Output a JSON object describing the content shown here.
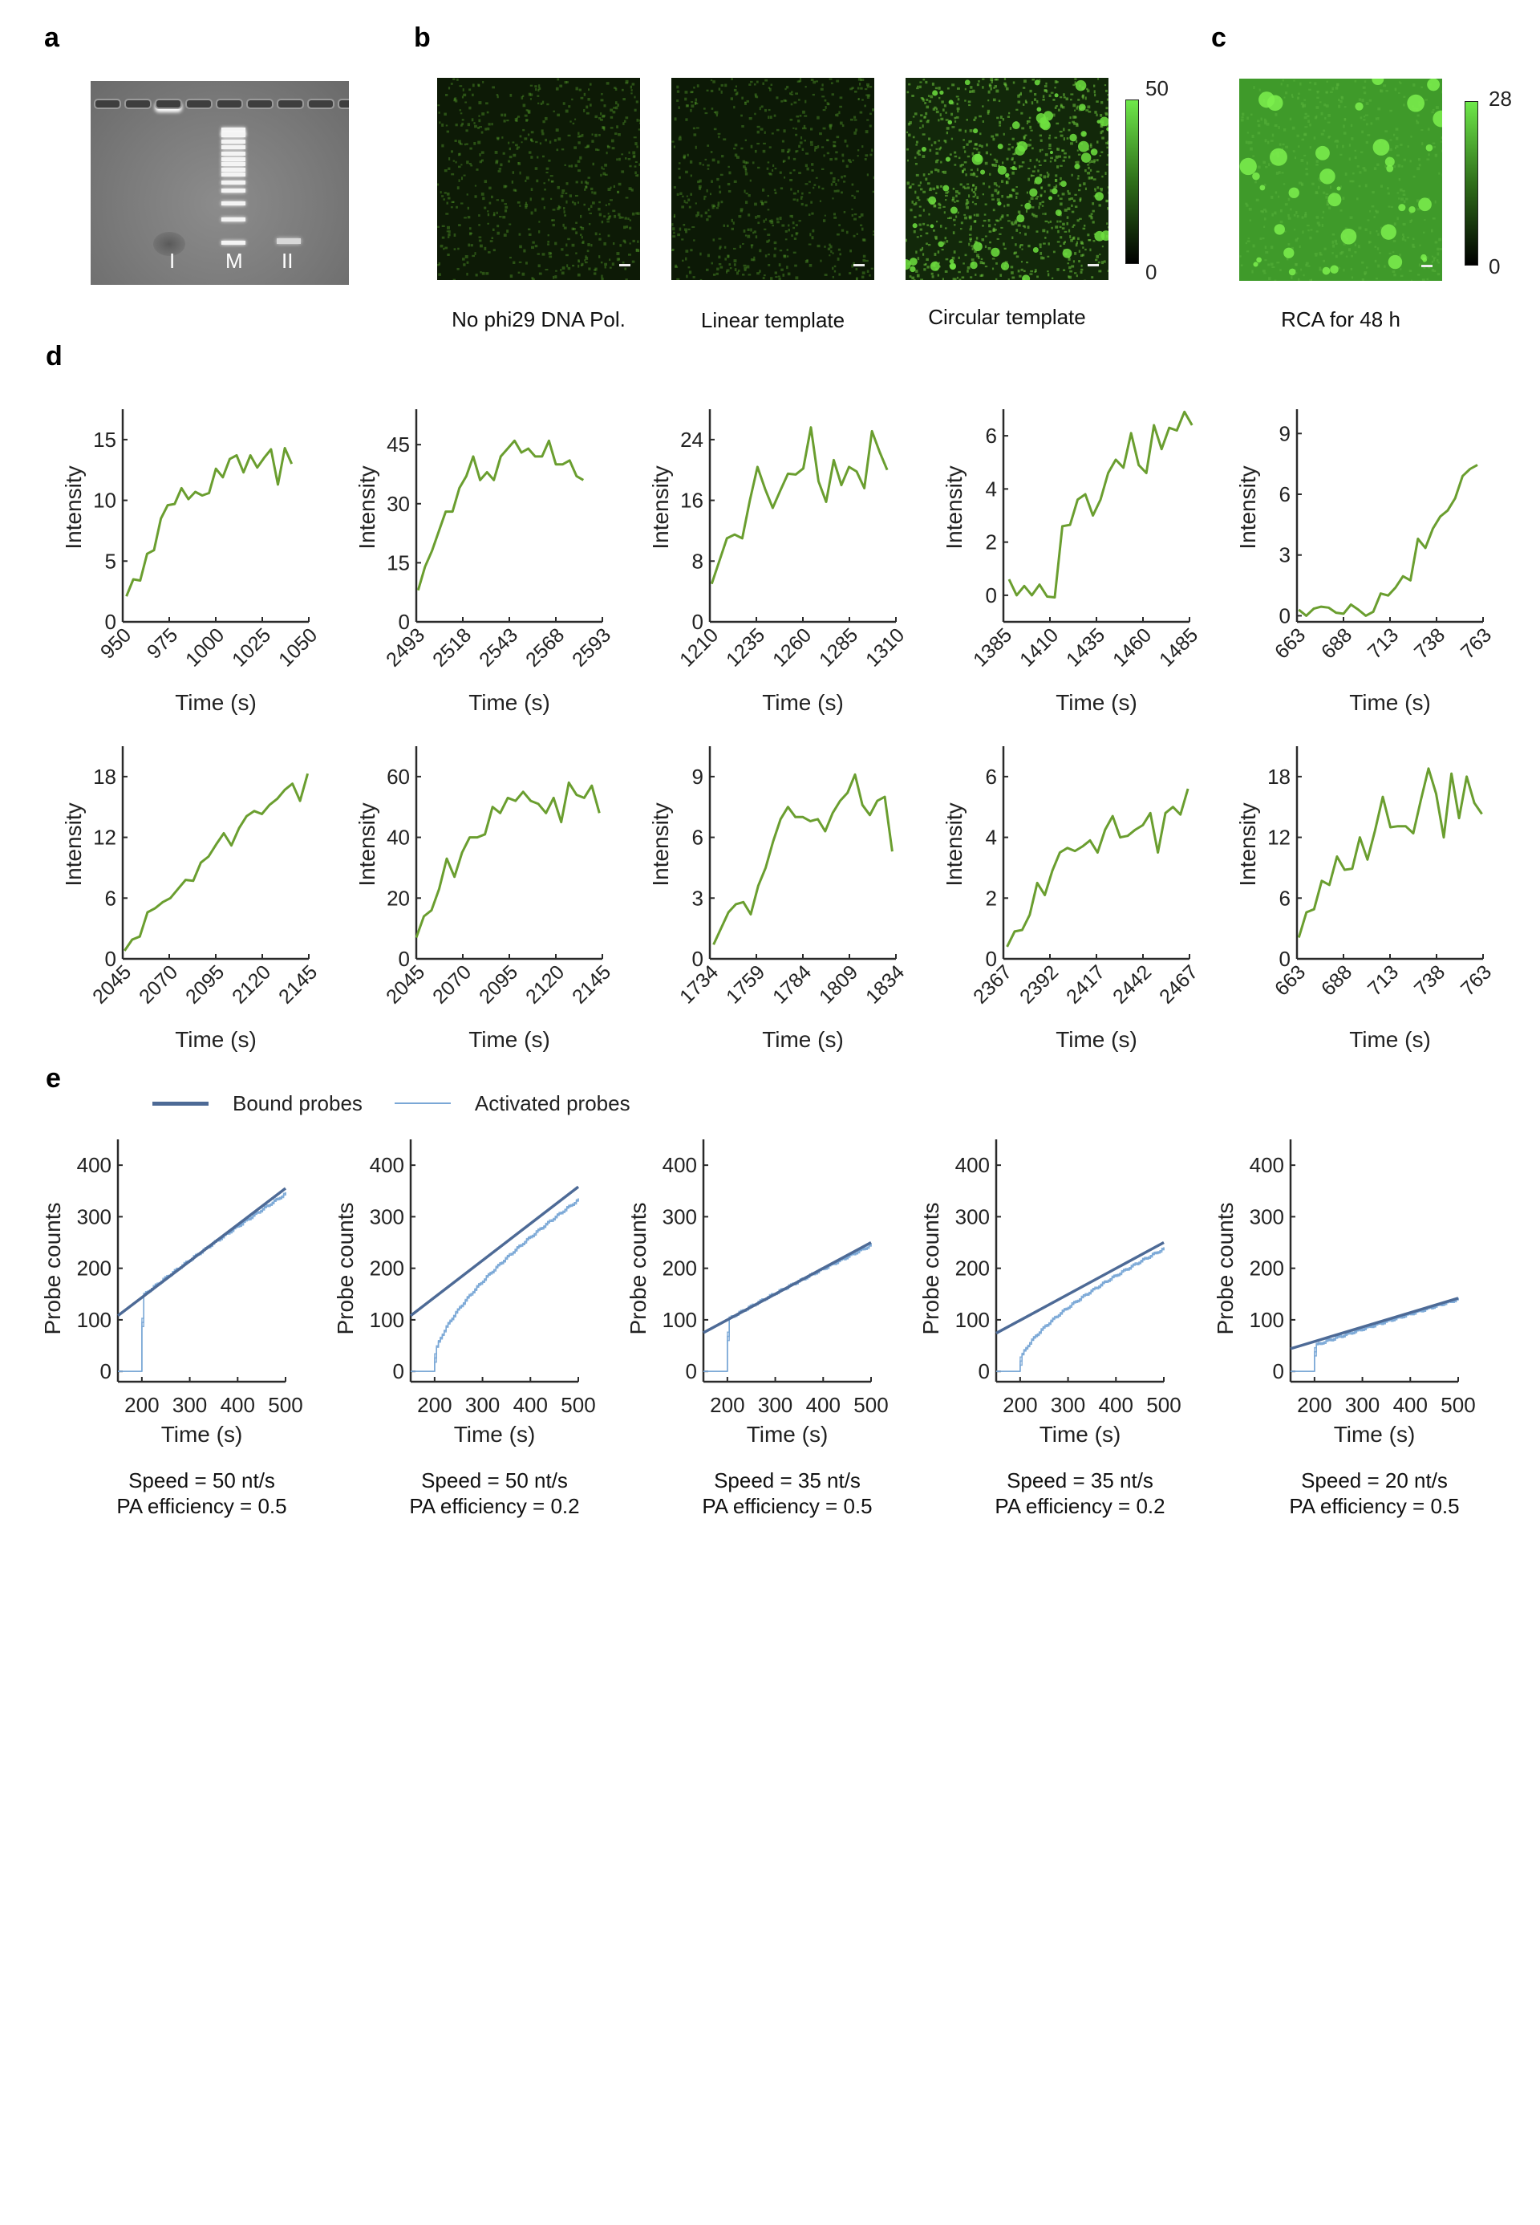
{
  "figure": {
    "panel_letters": [
      "a",
      "b",
      "c",
      "d",
      "e"
    ]
  },
  "panel_a": {
    "lane_labels": [
      "I",
      "M",
      "II"
    ],
    "description": "agarose gel image"
  },
  "panel_b": {
    "images": [
      {
        "caption": "No phi29 DNA Pol.",
        "brightness": "dark"
      },
      {
        "caption": "Linear template",
        "brightness": "dark"
      },
      {
        "caption": "Circular template",
        "brightness": "bright-spots"
      }
    ],
    "colorbar": {
      "max_label": "50",
      "min_label": "0"
    }
  },
  "panel_c": {
    "caption": "RCA for 48 h",
    "colorbar": {
      "max_label": "28",
      "min_label": "0"
    }
  },
  "colors": {
    "trace_green": "#6a9e2f",
    "bound_probes": "#4d6a96",
    "activated_probes": "#7aa7d6",
    "axis": "#2a2a2a"
  },
  "chart_data": [
    {
      "panel": "d",
      "type": "line",
      "xlabel": "Time (s)",
      "ylabel": "Intensity",
      "xlim": [
        950,
        1050
      ],
      "ylim": [
        0,
        17.5
      ],
      "xticks": [
        "950",
        "975",
        "1000",
        "1025",
        "1050"
      ],
      "yticks": [
        "0",
        "5",
        "10",
        "15"
      ],
      "ytick_values": [
        0,
        5,
        10,
        15
      ],
      "x_start": 952,
      "x_step": 3.7,
      "values": [
        2.1,
        3.5,
        3.4,
        5.6,
        5.9,
        8.5,
        9.6,
        9.7,
        11.0,
        10.1,
        10.7,
        10.4,
        10.6,
        12.6,
        11.9,
        13.4,
        13.7,
        12.3,
        13.7,
        12.7,
        13.5,
        14.2,
        11.3,
        14.3,
        13.0
      ]
    },
    {
      "panel": "d",
      "type": "line",
      "xlabel": "Time (s)",
      "ylabel": "Intensity",
      "xlim": [
        2493,
        2593
      ],
      "ylim": [
        0,
        54
      ],
      "xticks": [
        "2493",
        "2518",
        "2543",
        "2568",
        "2593"
      ],
      "yticks": [
        "0",
        "15",
        "30",
        "45"
      ],
      "ytick_values": [
        0,
        15,
        30,
        45
      ],
      "x_start": 2494,
      "x_step": 3.7,
      "values": [
        8,
        14,
        18,
        23,
        28,
        28,
        34,
        37,
        42,
        36,
        38,
        36,
        42,
        44,
        46,
        43,
        44,
        42,
        42,
        46,
        40,
        40,
        41,
        37,
        36
      ]
    },
    {
      "panel": "d",
      "type": "line",
      "xlabel": "Time (s)",
      "ylabel": "Intensity",
      "xlim": [
        1210,
        1310
      ],
      "ylim": [
        0,
        28
      ],
      "xticks": [
        "1210",
        "1235",
        "1260",
        "1285",
        "1310"
      ],
      "yticks": [
        "0",
        "8",
        "16",
        "24"
      ],
      "ytick_values": [
        0,
        8,
        16,
        24
      ],
      "x_start": 1211,
      "x_step": 4.1,
      "values": [
        5,
        8,
        11,
        11.5,
        11,
        16,
        20.4,
        17.5,
        15,
        17.3,
        19.5,
        19.4,
        20.2,
        25.6,
        18.5,
        15.8,
        21.3,
        18,
        20.4,
        19.8,
        17.6,
        25.1,
        22.4,
        20
      ]
    },
    {
      "panel": "d",
      "type": "line",
      "xlabel": "Time (s)",
      "ylabel": "Intensity",
      "xlim": [
        1385,
        1485
      ],
      "ylim": [
        -1,
        7
      ],
      "xticks": [
        "1385",
        "1410",
        "1435",
        "1460",
        "1485"
      ],
      "yticks": [
        "0",
        "2",
        "4",
        "6"
      ],
      "ytick_values": [
        0,
        2,
        4,
        6
      ],
      "x_start": 1388,
      "x_step": 4.1,
      "values": [
        0.6,
        0.0,
        0.35,
        0.0,
        0.4,
        -0.05,
        -0.08,
        2.6,
        2.65,
        3.6,
        3.8,
        3.0,
        3.6,
        4.6,
        5.1,
        4.8,
        6.1,
        4.9,
        4.6,
        6.4,
        5.5,
        6.3,
        6.2,
        6.9,
        6.4
      ]
    },
    {
      "panel": "d",
      "type": "line",
      "xlabel": "Time (s)",
      "ylabel": "Intensity",
      "xlim": [
        663,
        763
      ],
      "ylim": [
        -0.3,
        10.2
      ],
      "xticks": [
        "663",
        "688",
        "713",
        "738",
        "763"
      ],
      "yticks": [
        "0",
        "3",
        "6",
        "9"
      ],
      "ytick_values": [
        0,
        3,
        6,
        9
      ],
      "x_start": 664,
      "x_step": 4.0,
      "values": [
        0.3,
        0.0,
        0.35,
        0.45,
        0.4,
        0.15,
        0.1,
        0.55,
        0.3,
        0.0,
        0.2,
        1.1,
        1.0,
        1.4,
        1.95,
        1.75,
        3.8,
        3.35,
        4.3,
        4.9,
        5.2,
        5.8,
        6.9,
        7.25,
        7.45
      ]
    },
    {
      "panel": "d",
      "type": "line",
      "xlabel": "Time (s)",
      "ylabel": "Intensity",
      "xlim": [
        2045,
        2145
      ],
      "ylim": [
        0,
        21
      ],
      "xticks": [
        "2045",
        "2070",
        "2095",
        "2120",
        "2145"
      ],
      "yticks": [
        "0",
        "6",
        "12",
        "18"
      ],
      "ytick_values": [
        0,
        6,
        12,
        18
      ],
      "x_start": 2046,
      "x_step": 4.1,
      "values": [
        0.8,
        1.9,
        2.2,
        4.6,
        5.0,
        5.6,
        6.0,
        6.9,
        7.8,
        7.7,
        9.5,
        10.1,
        11.3,
        12.4,
        11.2,
        12.9,
        14.1,
        14.6,
        14.3,
        15.2,
        15.8,
        16.7,
        17.3,
        15.6,
        18.3
      ]
    },
    {
      "panel": "d",
      "type": "line",
      "xlabel": "Time (s)",
      "ylabel": "Intensity",
      "xlim": [
        2045,
        2145
      ],
      "ylim": [
        0,
        70
      ],
      "xticks": [
        "2045",
        "2070",
        "2095",
        "2120",
        "2145"
      ],
      "yticks": [
        "0",
        "20",
        "40",
        "60"
      ],
      "ytick_values": [
        0,
        20,
        40,
        60
      ],
      "x_start": 2045,
      "x_step": 4.1,
      "values": [
        7,
        14,
        16,
        23,
        33,
        27,
        35,
        40,
        40,
        41,
        50,
        48,
        53,
        52,
        55,
        52,
        51,
        48,
        53,
        45,
        58,
        54,
        53,
        57,
        48
      ]
    },
    {
      "panel": "d",
      "type": "line",
      "xlabel": "Time (s)",
      "ylabel": "Intensity",
      "xlim": [
        1734,
        1834
      ],
      "ylim": [
        0,
        10.5
      ],
      "xticks": [
        "1734",
        "1759",
        "1784",
        "1809",
        "1834"
      ],
      "yticks": [
        "0",
        "3",
        "6",
        "9"
      ],
      "ytick_values": [
        0,
        3,
        6,
        9
      ],
      "x_start": 1736,
      "x_step": 4.0,
      "values": [
        0.7,
        1.5,
        2.3,
        2.7,
        2.8,
        2.2,
        3.6,
        4.5,
        5.8,
        6.9,
        7.5,
        7.0,
        7.0,
        6.8,
        6.9,
        6.3,
        7.2,
        7.8,
        8.2,
        9.1,
        7.6,
        7.1,
        7.8,
        8.0,
        5.3
      ]
    },
    {
      "panel": "d",
      "type": "line",
      "xlabel": "Time (s)",
      "ylabel": "Intensity",
      "xlim": [
        2367,
        2467
      ],
      "ylim": [
        0,
        7
      ],
      "xticks": [
        "2367",
        "2392",
        "2417",
        "2442",
        "2467"
      ],
      "yticks": [
        "0",
        "2",
        "4",
        "6"
      ],
      "ytick_values": [
        0,
        2,
        4,
        6
      ],
      "x_start": 2369,
      "x_step": 4.05,
      "values": [
        0.4,
        0.9,
        0.95,
        1.45,
        2.5,
        2.1,
        2.9,
        3.5,
        3.65,
        3.55,
        3.7,
        3.9,
        3.5,
        4.25,
        4.7,
        4.0,
        4.05,
        4.25,
        4.4,
        4.8,
        3.5,
        4.8,
        5.0,
        4.75,
        5.6
      ]
    },
    {
      "panel": "d",
      "type": "line",
      "xlabel": "Time (s)",
      "ylabel": "Intensity",
      "xlim": [
        663,
        763
      ],
      "ylim": [
        0,
        21
      ],
      "xticks": [
        "663",
        "688",
        "713",
        "738",
        "763"
      ],
      "yticks": [
        "0",
        "6",
        "12",
        "18"
      ],
      "ytick_values": [
        0,
        6,
        12,
        18
      ],
      "x_start": 664,
      "x_step": 4.1,
      "values": [
        2.1,
        4.6,
        4.9,
        7.7,
        7.3,
        10.1,
        8.8,
        8.9,
        12.0,
        9.8,
        12.7,
        16.0,
        13.0,
        13.1,
        13.1,
        12.4,
        15.7,
        18.8,
        16.3,
        12.0,
        18.3,
        13.9,
        18.0,
        15.4,
        14.3
      ]
    },
    {
      "panel": "e",
      "type": "line",
      "xlabel": "Time (s)",
      "ylabel": "Probe counts",
      "xlim": [
        150,
        500
      ],
      "ylim": [
        -20,
        450
      ],
      "xticks": [
        "200",
        "300",
        "400",
        "500"
      ],
      "xtick_values": [
        200,
        300,
        400,
        500
      ],
      "yticks": [
        "0",
        "100",
        "200",
        "300",
        "400"
      ],
      "ytick_values": [
        0,
        100,
        200,
        300,
        400
      ],
      "legend": [
        "Bound probes",
        "Activated probes"
      ],
      "caption_line1": "Speed = 50 nt/s",
      "caption_line2": "PA efficiency = 0.5",
      "bound": {
        "x": [
          150,
          500
        ],
        "y": [
          108,
          355
        ]
      },
      "activated_start": 200,
      "activated_jump": 145,
      "activated_end": 345,
      "activated_curve": 0.1
    },
    {
      "panel": "e",
      "type": "line",
      "xlabel": "Time (s)",
      "ylabel": "Probe counts",
      "xlim": [
        150,
        500
      ],
      "ylim": [
        -20,
        450
      ],
      "xticks": [
        "200",
        "300",
        "400",
        "500"
      ],
      "xtick_values": [
        200,
        300,
        400,
        500
      ],
      "yticks": [
        "0",
        "100",
        "200",
        "300",
        "400"
      ],
      "ytick_values": [
        0,
        100,
        200,
        300,
        400
      ],
      "caption_line1": "Speed = 50 nt/s",
      "caption_line2": "PA efficiency = 0.2",
      "bound": {
        "x": [
          150,
          500
        ],
        "y": [
          108,
          358
        ]
      },
      "activated_start": 200,
      "activated_jump": 30,
      "activated_end": 333,
      "activated_curve": 0.55
    },
    {
      "panel": "e",
      "type": "line",
      "xlabel": "Time (s)",
      "ylabel": "Probe counts",
      "xlim": [
        150,
        500
      ],
      "ylim": [
        -20,
        450
      ],
      "xticks": [
        "200",
        "300",
        "400",
        "500"
      ],
      "xtick_values": [
        200,
        300,
        400,
        500
      ],
      "yticks": [
        "0",
        "100",
        "200",
        "300",
        "400"
      ],
      "ytick_values": [
        0,
        100,
        200,
        300,
        400
      ],
      "caption_line1": "Speed = 35 nt/s",
      "caption_line2": "PA efficiency = 0.5",
      "bound": {
        "x": [
          150,
          500
        ],
        "y": [
          75,
          250
        ]
      },
      "activated_start": 200,
      "activated_jump": 100,
      "activated_end": 245,
      "activated_curve": 0.1
    },
    {
      "panel": "e",
      "type": "line",
      "xlabel": "Time (s)",
      "ylabel": "Probe counts",
      "xlim": [
        150,
        500
      ],
      "ylim": [
        -20,
        450
      ],
      "xticks": [
        "200",
        "300",
        "400",
        "500"
      ],
      "xtick_values": [
        200,
        300,
        400,
        500
      ],
      "yticks": [
        "0",
        "100",
        "200",
        "300",
        "400"
      ],
      "ytick_values": [
        0,
        100,
        200,
        300,
        400
      ],
      "caption_line1": "Speed = 35 nt/s",
      "caption_line2": "PA efficiency = 0.2",
      "bound": {
        "x": [
          150,
          500
        ],
        "y": [
          74,
          250
        ]
      },
      "activated_start": 200,
      "activated_jump": 20,
      "activated_end": 238,
      "activated_curve": 0.55
    },
    {
      "panel": "e",
      "type": "line",
      "xlabel": "Time (s)",
      "ylabel": "Probe counts",
      "xlim": [
        150,
        500
      ],
      "ylim": [
        -20,
        450
      ],
      "xticks": [
        "200",
        "300",
        "400",
        "500"
      ],
      "xtick_values": [
        200,
        300,
        400,
        500
      ],
      "yticks": [
        "0",
        "100",
        "200",
        "300",
        "400"
      ],
      "ytick_values": [
        0,
        100,
        200,
        300,
        400
      ],
      "caption_line1": "Speed = 20 nt/s",
      "caption_line2": "PA efficiency = 0.5",
      "bound": {
        "x": [
          150,
          500
        ],
        "y": [
          44,
          142
        ]
      },
      "activated_start": 200,
      "activated_jump": 50,
      "activated_end": 140,
      "activated_curve": 0.1
    }
  ]
}
